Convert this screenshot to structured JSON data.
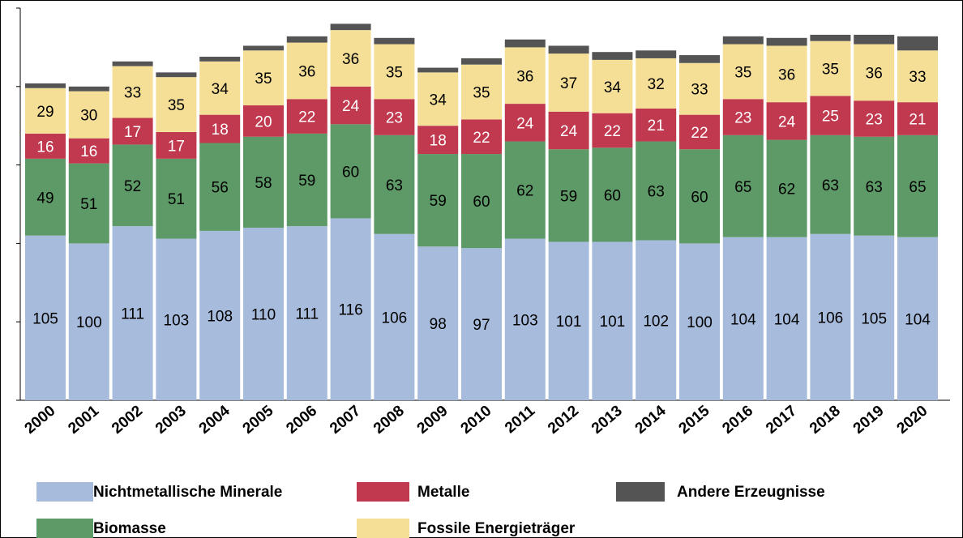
{
  "chart_data": {
    "type": "stacked_bar",
    "categories": [
      "2000",
      "2001",
      "2002",
      "2003",
      "2004",
      "2005",
      "2006",
      "2007",
      "2008",
      "2009",
      "2010",
      "2011",
      "2012",
      "2013",
      "2014",
      "2015",
      "2016",
      "2017",
      "2018",
      "2019",
      "2020"
    ],
    "series": [
      {
        "name": "Nichtmetallische Minerale",
        "color": "#a7bbdc",
        "values": [
          105,
          100,
          111,
          103,
          108,
          110,
          111,
          116,
          106,
          98,
          97,
          103,
          101,
          101,
          102,
          100,
          104,
          104,
          106,
          105,
          104
        ],
        "labels": true
      },
      {
        "name": "Biomasse",
        "color": "#5e9a68",
        "values": [
          49,
          51,
          52,
          51,
          56,
          58,
          59,
          60,
          63,
          59,
          60,
          62,
          59,
          60,
          63,
          60,
          65,
          62,
          63,
          63,
          65
        ],
        "labels": true
      },
      {
        "name": "Metalle",
        "color": "#c0394f",
        "values": [
          16,
          16,
          17,
          17,
          18,
          20,
          22,
          24,
          23,
          18,
          22,
          24,
          24,
          22,
          21,
          22,
          23,
          24,
          25,
          23,
          21
        ],
        "labels": true
      },
      {
        "name": "Fossile Energieträger",
        "color": "#f5df97",
        "values": [
          29,
          30,
          33,
          35,
          34,
          35,
          36,
          36,
          35,
          34,
          35,
          36,
          37,
          34,
          32,
          33,
          35,
          36,
          35,
          36,
          33
        ],
        "labels": true
      },
      {
        "name": "Andere Erzeugnisse",
        "color": "#545454",
        "values": [
          3,
          3,
          3,
          3,
          3,
          3,
          4,
          4,
          4,
          3,
          4,
          5,
          5,
          5,
          5,
          5,
          5,
          5,
          4,
          6,
          9
        ],
        "labels": false
      }
    ],
    "ylim": [
      0,
      250
    ],
    "yticks": [
      0,
      50,
      100,
      150,
      200,
      250
    ]
  }
}
